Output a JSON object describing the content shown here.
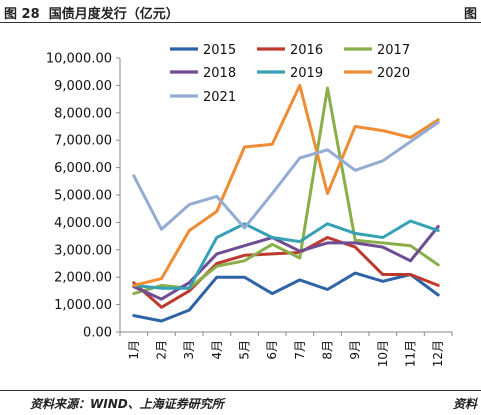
{
  "figure": {
    "label": "图 28",
    "title": "国债月度发行（亿元）",
    "right_label": "图",
    "source": "资料来源：WIND、上海证券研究所",
    "source_right": "资料"
  },
  "chart_data": {
    "type": "line",
    "title": "国债月度发行（亿元）",
    "xlabel": "",
    "ylabel": "",
    "ylim": [
      0,
      10000
    ],
    "yticks": [
      "0.00",
      "1,000.00",
      "2,000.00",
      "3,000.00",
      "4,000.00",
      "5,000.00",
      "6,000.00",
      "7,000.00",
      "8,000.00",
      "9,000.00",
      "10,000.00"
    ],
    "ytick_values": [
      0,
      1000,
      2000,
      3000,
      4000,
      5000,
      6000,
      7000,
      8000,
      9000,
      10000
    ],
    "categories": [
      "1月",
      "2月",
      "3月",
      "4月",
      "5月",
      "6月",
      "7月",
      "8月",
      "9月",
      "10月",
      "11月",
      "12月"
    ],
    "grid": false,
    "legend": "top",
    "series": [
      {
        "name": "2015",
        "color": "#2E63A6",
        "values": [
          600,
          400,
          800,
          2000,
          2000,
          1400,
          1900,
          1550,
          2150,
          1850,
          2100,
          1350
        ]
      },
      {
        "name": "2016",
        "color": "#BE3A2E",
        "values": [
          1800,
          900,
          1500,
          2500,
          2800,
          2850,
          2900,
          3450,
          3100,
          2100,
          2100,
          1700
        ]
      },
      {
        "name": "2017",
        "color": "#8AAE4A",
        "values": [
          1400,
          1700,
          1600,
          2400,
          2600,
          3200,
          2700,
          8900,
          3350,
          3250,
          3150,
          2450
        ]
      },
      {
        "name": "2018",
        "color": "#6F4C94",
        "values": [
          1650,
          1200,
          1800,
          2850,
          3150,
          3450,
          2950,
          3250,
          3250,
          3100,
          2600,
          3850
        ]
      },
      {
        "name": "2019",
        "color": "#36A1B5",
        "values": [
          1700,
          1600,
          1600,
          3450,
          3950,
          3450,
          3300,
          3950,
          3600,
          3450,
          4050,
          3700
        ]
      },
      {
        "name": "2020",
        "color": "#EF8C34",
        "values": [
          1700,
          1950,
          3700,
          4400,
          6750,
          6850,
          9000,
          5050,
          7500,
          7350,
          7100,
          7750
        ]
      },
      {
        "name": "2021",
        "color": "#94ABD3",
        "values": [
          5700,
          3750,
          4650,
          4950,
          3800,
          5050,
          6350,
          6650,
          5900,
          6250,
          6950,
          7650
        ]
      }
    ]
  }
}
